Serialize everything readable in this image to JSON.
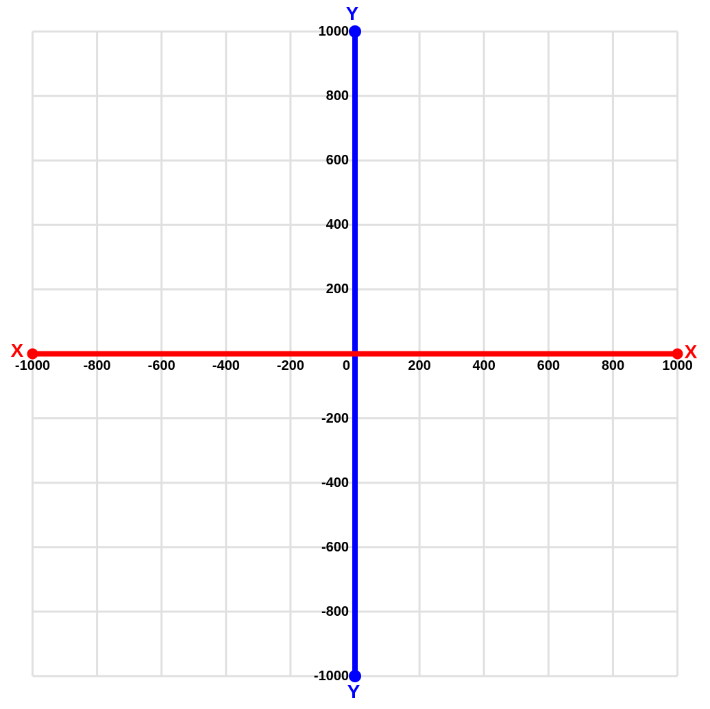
{
  "colors": {
    "background": "#ffffff",
    "grid": "#e0e0e0",
    "x_axis": "#ff0000",
    "y_axis": "#0000ff",
    "tick_text": "#000000"
  },
  "chart_data": {
    "type": "line",
    "title": "",
    "xlabel": "X",
    "ylabel": "Y",
    "xlim": [
      -1000,
      1000
    ],
    "ylim": [
      -1000,
      1000
    ],
    "tick_step": 200,
    "grid": true,
    "legend": false,
    "x_ticks": [
      -1000,
      -800,
      -600,
      -400,
      -200,
      0,
      200,
      400,
      600,
      800,
      1000
    ],
    "y_ticks": [
      1000,
      800,
      600,
      400,
      200,
      -200,
      -400,
      -600,
      -800,
      -1000
    ],
    "series": [
      {
        "name": "x-axis",
        "label": "X",
        "color": "#ff0000",
        "line_width": 8,
        "marker_radius": 8,
        "points": [
          [
            -1000,
            0
          ],
          [
            1000,
            0
          ]
        ]
      },
      {
        "name": "y-axis",
        "label": "Y",
        "color": "#0000ff",
        "line_width": 8,
        "marker_radius": 9,
        "points": [
          [
            0,
            -1000
          ],
          [
            0,
            1000
          ]
        ]
      }
    ]
  }
}
